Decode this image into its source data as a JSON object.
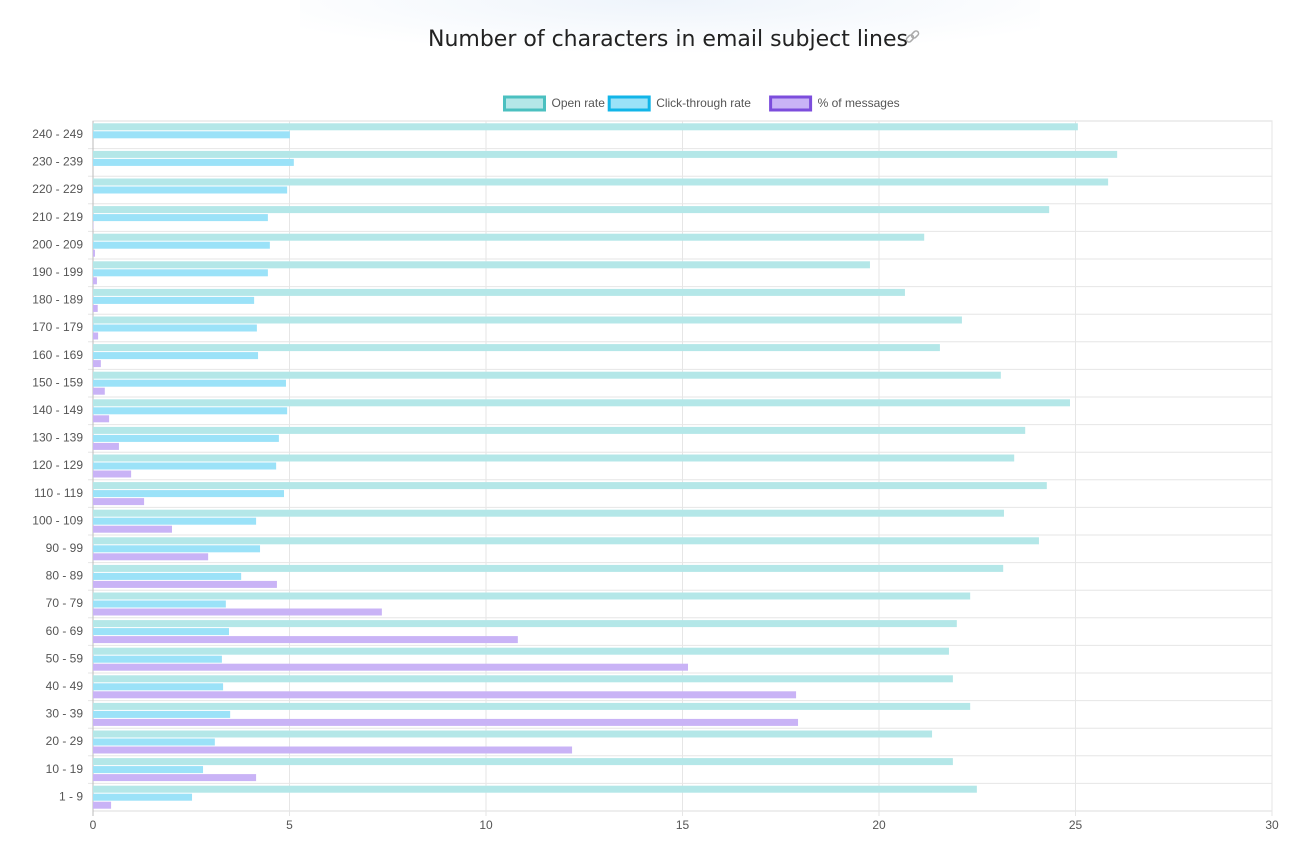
{
  "chart_data": {
    "type": "hbar",
    "title": "Number of characters in email subject lines",
    "categories": [
      "240 - 249",
      "230 - 239",
      "220 - 229",
      "210 - 219",
      "200 - 209",
      "190 - 199",
      "180 - 189",
      "170 - 179",
      "160 - 169",
      "150 - 159",
      "140 - 149",
      "130 - 139",
      "120 - 129",
      "110 - 119",
      "100 - 109",
      "90 - 99",
      "80 - 89",
      "70 - 79",
      "60 - 69",
      "50 - 59",
      "40 - 49",
      "30 - 39",
      "20 - 29",
      "10 - 19",
      "1 - 9"
    ],
    "series": [
      {
        "name": "Open rate",
        "color": "#b4e7e8",
        "border_color": "#4bc0c0",
        "values": [
          25.06,
          26.06,
          25.83,
          24.33,
          21.15,
          19.77,
          20.66,
          22.11,
          21.55,
          23.1,
          24.86,
          23.72,
          23.44,
          24.27,
          23.18,
          24.07,
          23.16,
          22.32,
          21.98,
          21.78,
          21.88,
          22.32,
          21.35,
          21.88,
          22.49
        ]
      },
      {
        "name": "Click-through rate",
        "color": "#9be2f8",
        "border_color": "#12b5e8",
        "values": [
          5.01,
          5.11,
          4.94,
          4.45,
          4.5,
          4.45,
          4.1,
          4.17,
          4.2,
          4.91,
          4.94,
          4.73,
          4.66,
          4.86,
          4.15,
          4.25,
          3.77,
          3.38,
          3.46,
          3.28,
          3.31,
          3.49,
          3.1,
          2.8,
          2.52
        ]
      },
      {
        "name": "% of messages",
        "color": "#c9b3f6",
        "border_color": "#7c4ddc",
        "values": [
          0,
          0,
          0,
          0.01,
          0.05,
          0.1,
          0.12,
          0.13,
          0.2,
          0.3,
          0.41,
          0.66,
          0.97,
          1.3,
          2.01,
          2.93,
          4.68,
          7.35,
          10.81,
          15.14,
          17.89,
          17.94,
          12.19,
          4.15,
          0.46
        ]
      }
    ],
    "xlim": [
      0,
      30
    ],
    "xticks": [
      0,
      5,
      10,
      15,
      20,
      25,
      30
    ],
    "grid": true
  }
}
